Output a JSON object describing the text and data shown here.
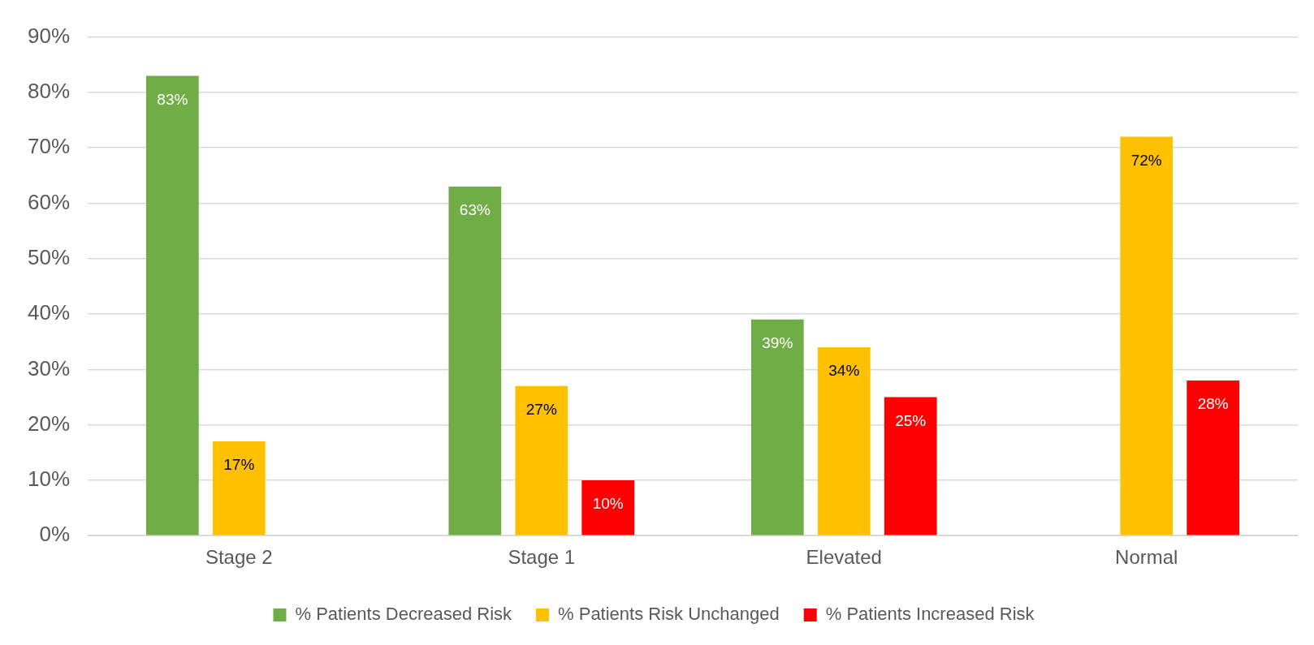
{
  "chart_data": {
    "type": "bar",
    "categories": [
      "Stage 2",
      "Stage 1",
      "Elevated",
      "Normal"
    ],
    "series": [
      {
        "name": "% Patients Decreased Risk",
        "color": "#70ad47",
        "values": [
          83,
          63,
          39,
          null
        ],
        "value_labels": [
          "83%",
          "63%",
          "39%",
          null
        ]
      },
      {
        "name": "% Patients Risk Unchanged",
        "color": "#ffc000",
        "values": [
          17,
          27,
          34,
          72
        ],
        "value_labels": [
          "17%",
          "27%",
          "34%",
          "72%"
        ]
      },
      {
        "name": "% Patients Increased Risk",
        "color": "#ff0000",
        "values": [
          null,
          10,
          25,
          28
        ],
        "value_labels": [
          null,
          "10%",
          "25%",
          "28%"
        ]
      }
    ],
    "ylim": [
      0,
      90
    ],
    "yticks": [
      {
        "value": 0,
        "label": "0%"
      },
      {
        "value": 10,
        "label": "10%"
      },
      {
        "value": 20,
        "label": "20%"
      },
      {
        "value": 30,
        "label": "30%"
      },
      {
        "value": 40,
        "label": "40%"
      },
      {
        "value": 50,
        "label": "50%"
      },
      {
        "value": 60,
        "label": "60%"
      },
      {
        "value": 70,
        "label": "70%"
      },
      {
        "value": 80,
        "label": "80%"
      },
      {
        "value": 90,
        "label": "90%"
      }
    ],
    "grid": "y",
    "legend": "bottom"
  }
}
